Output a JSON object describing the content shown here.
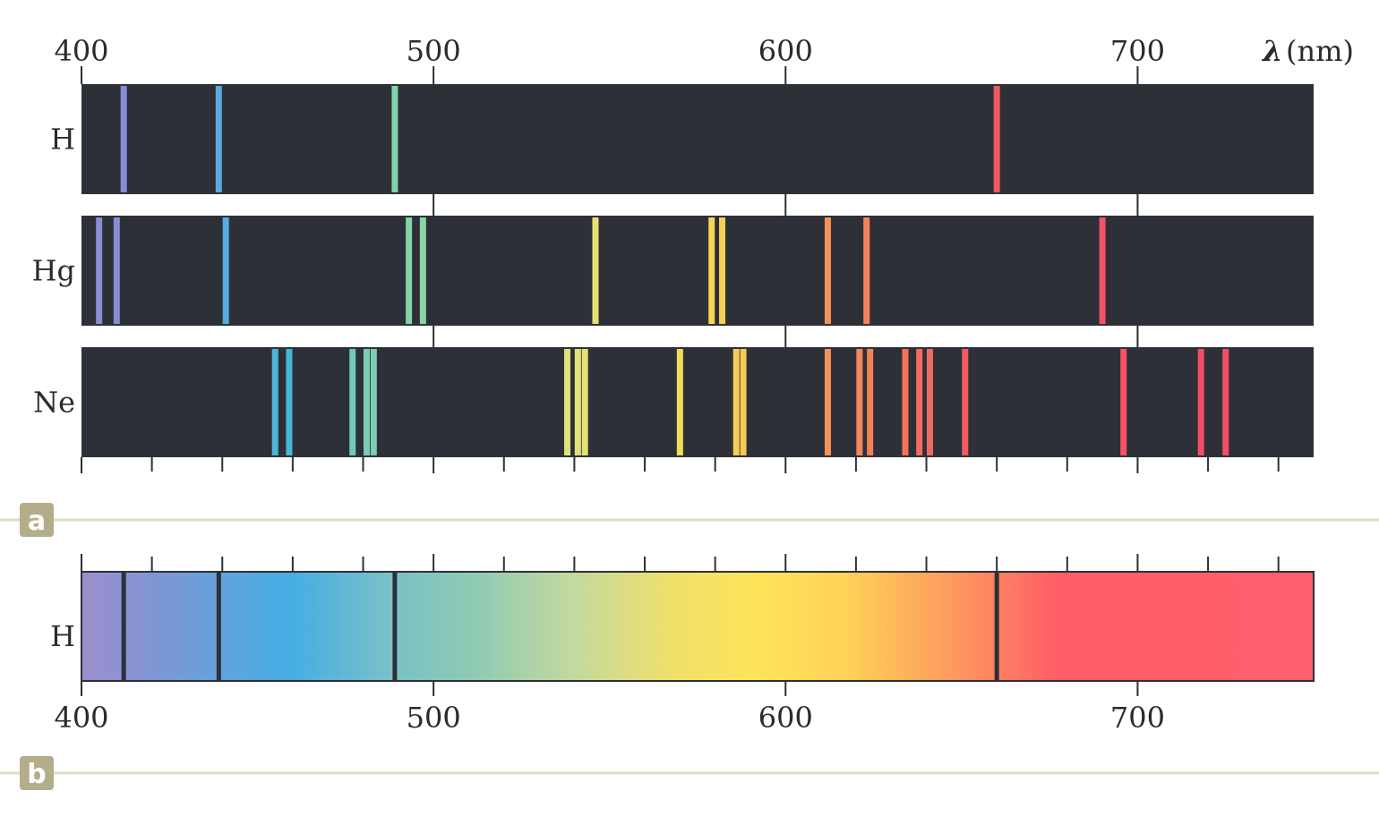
{
  "chart_data": {
    "type": "line-spectrum",
    "x_range_nm": [
      400,
      750
    ],
    "major_ticks": [
      400,
      500,
      600,
      700
    ],
    "minor_tick_step": 20,
    "axis_label_symbol": "λ",
    "axis_label_unit": "(nm)",
    "panel_a": {
      "label": "a",
      "rows": [
        {
          "element": "H",
          "lines_nm": [
            412,
            439,
            489,
            660
          ]
        },
        {
          "element": "Hg",
          "lines_nm": [
            405,
            410,
            441,
            493,
            497,
            546,
            579,
            582,
            612,
            623,
            690
          ]
        },
        {
          "element": "Ne",
          "lines_nm": [
            455,
            459,
            477,
            481,
            483,
            538,
            541,
            543,
            570,
            586,
            588,
            612,
            621,
            624,
            634,
            638,
            641,
            651,
            696,
            718,
            725
          ]
        }
      ]
    },
    "panel_b": {
      "label": "b",
      "element": "H",
      "absorption_lines_nm": [
        412,
        439,
        489,
        660
      ]
    }
  },
  "colors": {
    "background_dark": "#2e3038",
    "panel_badge": "#b5ad8a",
    "rule_line": "#dedcc4"
  }
}
